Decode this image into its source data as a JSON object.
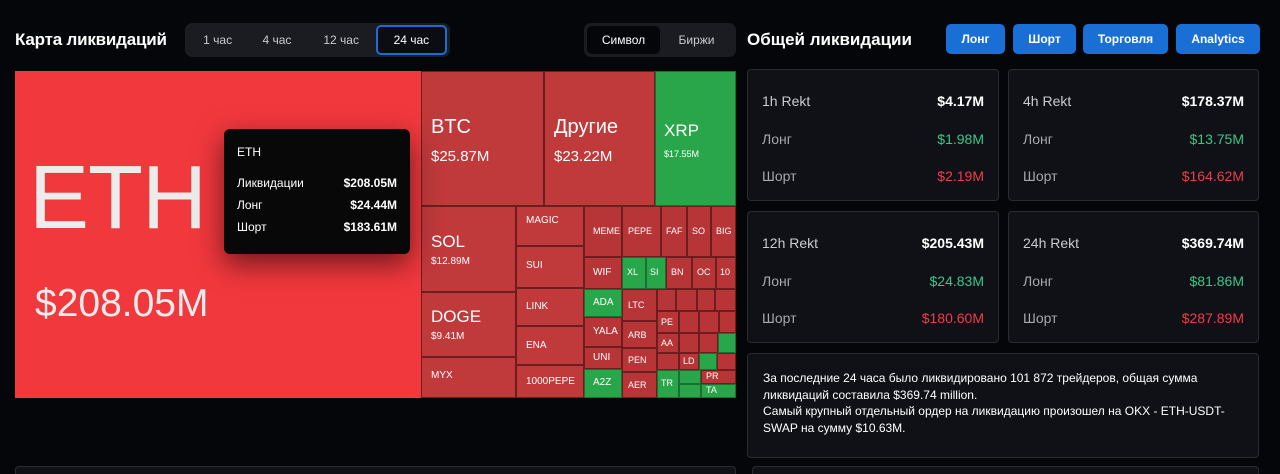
{
  "header": {
    "map_title": "Карта ликвидаций",
    "time_tabs": [
      "1 час",
      "4 час",
      "12 час",
      "24 час"
    ],
    "active_time": "24 час",
    "mode_tabs": [
      "Символ",
      "Биржи"
    ],
    "active_mode": "Символ",
    "general_title": "Общей ликвидации",
    "buttons": [
      "Лонг",
      "Шорт",
      "Торговля",
      "Analytics"
    ]
  },
  "colors": {
    "accent": "#1a6fd6",
    "long": "#35c98b",
    "short": "#f23b4a",
    "tile_red": "#c0393b",
    "tile_green": "#2aa64a",
    "eth_red": "#f1383d"
  },
  "treemap": {
    "eth": {
      "symbol": "ETH",
      "value": "$208.05M"
    },
    "btc": {
      "symbol": "BTC",
      "value": "$25.87M"
    },
    "other": {
      "symbol": "Другие",
      "value": "$23.22M"
    },
    "xrp": {
      "symbol": "XRP",
      "value": "$17.55M"
    },
    "sol": {
      "symbol": "SOL",
      "value": "$12.89M"
    },
    "doge": {
      "symbol": "DOGE",
      "value": "$9.41M"
    },
    "small": [
      "MAGIC",
      "SUI",
      "LINK",
      "ENA",
      "1000PEPE",
      "MYX",
      "MEME",
      "PEPE",
      "FAF",
      "SO",
      "BIG",
      "WIF",
      "XL",
      "SI",
      "BN",
      "OC",
      "10",
      "ADA",
      "LTC",
      "YALA",
      "ARB",
      "PE",
      "UNI",
      "PEN",
      "AA",
      "A2Z",
      "AER",
      "TR",
      "LD",
      "PR",
      "TA",
      "TR"
    ]
  },
  "tooltip": {
    "symbol": "ETH",
    "rows": [
      {
        "label": "Ликвидации",
        "value": "$208.05M"
      },
      {
        "label": "Лонг",
        "value": "$24.44M"
      },
      {
        "label": "Шорт",
        "value": "$183.61M"
      }
    ]
  },
  "cards": [
    {
      "title": "1h Rekt",
      "total": "$4.17M",
      "long_label": "Лонг",
      "long": "$1.98M",
      "short_label": "Шорт",
      "short": "$2.19M"
    },
    {
      "title": "4h Rekt",
      "total": "$178.37M",
      "long_label": "Лонг",
      "long": "$13.75M",
      "short_label": "Шорт",
      "short": "$164.62M"
    },
    {
      "title": "12h Rekt",
      "total": "$205.43M",
      "long_label": "Лонг",
      "long": "$24.83M",
      "short_label": "Шорт",
      "short": "$180.60M"
    },
    {
      "title": "24h Rekt",
      "total": "$369.74M",
      "long_label": "Лонг",
      "long": "$81.86M",
      "short_label": "Шорт",
      "short": "$287.89M"
    }
  ],
  "summary": {
    "line1": "За последние 24 часа было ликвидировано 101 872 трейдеров, общая сумма ликвидаций составила $369.74 million.",
    "line2": "Самый крупный отдельный ордер на ликвидацию произошел на OKX - ETH-USDT-SWAP на сумму $10.63M."
  }
}
